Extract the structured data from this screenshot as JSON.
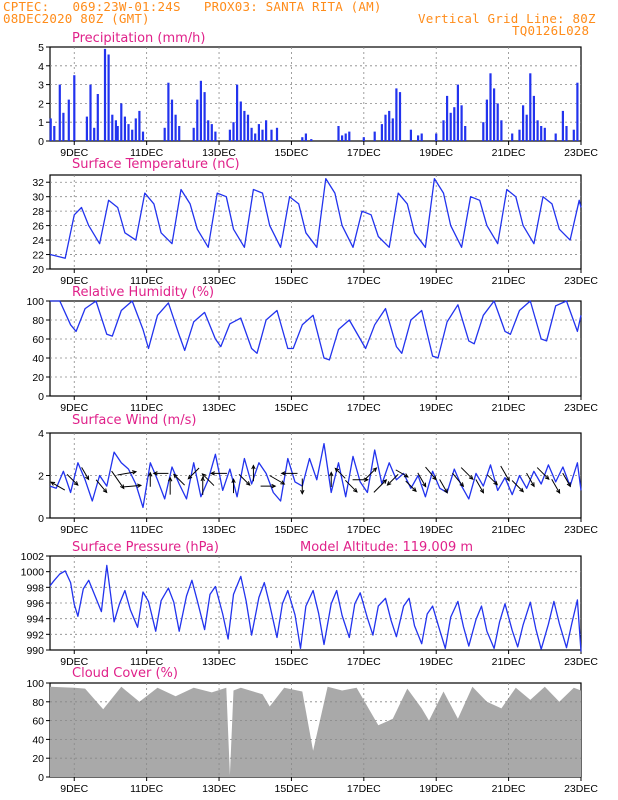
{
  "header": {
    "line1": "CPTEC:   069:23W-01:24S   PROX03: SANTA RITA (AM)",
    "line2_left": "08DEC2020 80Z (GMT)",
    "line2_right": "Vertical Grid Line: 80Z",
    "line3_right": "TQ0126L028"
  },
  "colors": {
    "header": "#ff8c1a",
    "title": "#e0218a",
    "series": "#2233ee",
    "cloud": "#a9a9a9",
    "arrow": "#000000"
  },
  "x_axis": {
    "ticks": [
      "9DEC",
      "11DEC",
      "13DEC",
      "15DEC",
      "17DEC",
      "19DEC",
      "21DEC",
      "23DEC"
    ],
    "range_days": [
      8.33,
      23.0
    ]
  },
  "chart_data": [
    {
      "type": "bar",
      "title": "Precipitation (mm/h)",
      "ylim": [
        0,
        5
      ],
      "yticks": [
        "0",
        "1",
        "2",
        "3",
        "4",
        "5"
      ],
      "series": [
        {
          "x": [
            8.35,
            8.45,
            8.6,
            8.7,
            8.85,
            9.0,
            9.35,
            9.45,
            9.55,
            9.65,
            9.85,
            9.95,
            10.05,
            10.15,
            10.2,
            10.3,
            10.4,
            10.5,
            10.6,
            10.7,
            10.8,
            10.9,
            11.5,
            11.6,
            11.7,
            11.8,
            11.9,
            12.3,
            12.4,
            12.5,
            12.6,
            12.7,
            12.8,
            12.9,
            13.3,
            13.4,
            13.5,
            13.6,
            13.7,
            13.8,
            13.9,
            14.0,
            14.1,
            14.2,
            14.3,
            14.45,
            14.6,
            15.3,
            15.4,
            15.55,
            16.3,
            16.4,
            16.5,
            16.6,
            17.0,
            17.3,
            17.5,
            17.6,
            17.7,
            17.8,
            17.9,
            18.0,
            18.3,
            18.5,
            18.6,
            19.0,
            19.2,
            19.3,
            19.4,
            19.5,
            19.6,
            19.7,
            19.8,
            20.3,
            20.4,
            20.5,
            20.6,
            20.7,
            20.8,
            21.1,
            21.3,
            21.4,
            21.5,
            21.6,
            21.7,
            21.8,
            21.9,
            22.0,
            22.3,
            22.5,
            22.6,
            22.8,
            22.9
          ],
          "values": [
            1.2,
            0.8,
            3.0,
            1.5,
            2.2,
            3.5,
            1.3,
            3.0,
            0.7,
            2.5,
            4.9,
            4.6,
            1.4,
            1.1,
            0.8,
            2.0,
            1.3,
            0.9,
            0.6,
            1.2,
            1.6,
            0.5,
            0.7,
            3.1,
            2.2,
            1.4,
            0.8,
            0.7,
            2.2,
            3.2,
            2.6,
            1.1,
            0.9,
            0.5,
            0.6,
            1.0,
            3.0,
            2.1,
            1.6,
            1.4,
            0.7,
            0.4,
            0.9,
            0.6,
            1.1,
            0.6,
            0.7,
            0.2,
            0.4,
            0.1,
            0.8,
            0.3,
            0.4,
            0.5,
            0.2,
            0.5,
            0.9,
            1.4,
            1.6,
            1.2,
            2.8,
            2.6,
            0.6,
            0.3,
            0.4,
            0.4,
            1.1,
            2.4,
            1.5,
            1.8,
            3.0,
            1.9,
            0.8,
            1.0,
            2.2,
            3.6,
            2.8,
            2.0,
            1.1,
            0.4,
            0.6,
            1.9,
            1.4,
            3.6,
            2.4,
            1.1,
            0.8,
            0.7,
            0.4,
            1.6,
            0.8,
            0.6,
            3.1
          ]
        }
      ]
    },
    {
      "type": "line",
      "title": "Surface Temperature (nC)",
      "ylim": [
        20,
        33
      ],
      "yticks": [
        "20",
        "22",
        "24",
        "26",
        "28",
        "30",
        "32"
      ],
      "series": [
        {
          "x": [
            8.33,
            8.5,
            8.75,
            9.0,
            9.2,
            9.4,
            9.7,
            9.95,
            10.2,
            10.4,
            10.7,
            10.95,
            11.2,
            11.4,
            11.7,
            11.95,
            12.2,
            12.4,
            12.7,
            12.95,
            13.2,
            13.4,
            13.7,
            13.95,
            14.2,
            14.4,
            14.7,
            14.95,
            15.2,
            15.4,
            15.7,
            15.95,
            16.2,
            16.4,
            16.7,
            16.95,
            17.2,
            17.4,
            17.7,
            17.95,
            18.2,
            18.4,
            18.7,
            18.95,
            19.2,
            19.4,
            19.7,
            19.95,
            20.2,
            20.4,
            20.7,
            20.95,
            21.2,
            21.4,
            21.7,
            21.95,
            22.2,
            22.4,
            22.7,
            22.95,
            23.0
          ],
          "values": [
            22.0,
            21.8,
            21.5,
            27.5,
            28.5,
            26.0,
            23.5,
            29.5,
            28.5,
            25.0,
            24.0,
            30.5,
            29.0,
            25.0,
            23.5,
            31.0,
            29.0,
            25.5,
            23.0,
            30.5,
            30.0,
            25.5,
            23.0,
            31.0,
            30.5,
            26.0,
            23.0,
            30.0,
            29.0,
            25.0,
            23.0,
            32.5,
            30.5,
            26.0,
            23.0,
            28.0,
            27.5,
            24.5,
            23.0,
            30.5,
            29.0,
            25.0,
            23.0,
            32.5,
            30.5,
            26.0,
            23.0,
            30.0,
            29.5,
            26.0,
            23.5,
            31.0,
            30.0,
            26.0,
            23.5,
            30.0,
            29.0,
            25.5,
            24.0,
            29.5,
            28.5
          ]
        }
      ]
    },
    {
      "type": "line",
      "title": "Relative Humidity (%)",
      "ylim": [
        0,
        100
      ],
      "yticks": [
        "0",
        "20",
        "40",
        "60",
        "80",
        "100"
      ],
      "series": [
        {
          "x": [
            8.33,
            8.6,
            8.9,
            9.05,
            9.3,
            9.6,
            9.9,
            10.05,
            10.3,
            10.6,
            10.9,
            11.05,
            11.3,
            11.6,
            11.9,
            12.05,
            12.3,
            12.6,
            12.9,
            13.05,
            13.3,
            13.6,
            13.9,
            14.05,
            14.3,
            14.6,
            14.9,
            15.05,
            15.3,
            15.6,
            15.9,
            16.05,
            16.3,
            16.6,
            16.9,
            17.05,
            17.3,
            17.6,
            17.9,
            18.05,
            18.3,
            18.6,
            18.9,
            19.05,
            19.3,
            19.6,
            19.9,
            20.05,
            20.3,
            20.6,
            20.9,
            21.05,
            21.3,
            21.6,
            21.9,
            22.05,
            22.3,
            22.6,
            22.9,
            23.0
          ],
          "values": [
            100,
            100,
            75,
            68,
            92,
            100,
            65,
            63,
            90,
            100,
            70,
            50,
            85,
            98,
            64,
            48,
            78,
            88,
            60,
            52,
            76,
            82,
            50,
            45,
            80,
            90,
            50,
            50,
            75,
            85,
            40,
            38,
            70,
            80,
            60,
            50,
            75,
            92,
            52,
            45,
            80,
            90,
            42,
            40,
            78,
            96,
            58,
            55,
            85,
            100,
            68,
            65,
            90,
            100,
            60,
            58,
            95,
            100,
            68,
            85
          ]
        }
      ]
    },
    {
      "type": "line",
      "title": "Surface Wind (m/s)",
      "ylim": [
        0,
        4
      ],
      "yticks": [
        "0",
        "2",
        "4"
      ],
      "series": [
        {
          "x": [
            8.33,
            8.5,
            8.7,
            8.9,
            9.1,
            9.3,
            9.5,
            9.7,
            9.9,
            10.1,
            10.3,
            10.5,
            10.7,
            10.9,
            11.1,
            11.3,
            11.5,
            11.7,
            11.9,
            12.1,
            12.3,
            12.5,
            12.7,
            12.9,
            13.1,
            13.3,
            13.5,
            13.7,
            13.9,
            14.1,
            14.3,
            14.5,
            14.7,
            14.9,
            15.1,
            15.3,
            15.5,
            15.7,
            15.9,
            16.1,
            16.3,
            16.5,
            16.7,
            16.9,
            17.1,
            17.3,
            17.5,
            17.7,
            17.9,
            18.1,
            18.3,
            18.5,
            18.7,
            18.9,
            19.1,
            19.3,
            19.5,
            19.7,
            19.9,
            20.1,
            20.3,
            20.5,
            20.7,
            20.9,
            21.1,
            21.3,
            21.5,
            21.7,
            21.9,
            22.1,
            22.3,
            22.5,
            22.7,
            22.9,
            23.0
          ],
          "values": [
            1.5,
            1.4,
            2.2,
            1.2,
            2.6,
            1.8,
            0.8,
            2.0,
            1.5,
            3.1,
            2.6,
            2.3,
            1.6,
            0.5,
            2.6,
            1.8,
            0.9,
            2.4,
            1.6,
            0.9,
            2.6,
            1.0,
            1.8,
            3.0,
            1.3,
            2.3,
            1.0,
            2.8,
            1.6,
            2.6,
            2.1,
            1.2,
            0.8,
            2.8,
            1.7,
            1.5,
            2.8,
            1.8,
            3.5,
            1.2,
            2.6,
            1.0,
            2.9,
            1.7,
            1.2,
            3.2,
            1.6,
            2.6,
            1.8,
            2.1,
            1.4,
            2.0,
            1.0,
            2.2,
            1.4,
            1.2,
            2.3,
            1.5,
            0.9,
            2.1,
            1.5,
            2.5,
            1.3,
            1.9,
            1.1,
            2.0,
            1.4,
            2.2,
            1.6,
            2.5,
            1.7,
            2.4,
            1.5,
            2.6,
            1.3
          ]
        }
      ],
      "arrows": {
        "x": [
          8.55,
          8.95,
          9.3,
          9.75,
          10.2,
          10.45,
          10.6,
          11.1,
          11.4,
          11.65,
          11.9,
          12.3,
          12.55,
          12.7,
          13.0,
          13.4,
          13.7,
          13.95,
          14.35,
          14.6,
          14.95,
          15.3,
          16.1,
          16.35,
          16.65,
          16.9,
          17.2,
          17.45,
          17.8,
          18.05,
          18.3,
          18.6,
          18.85,
          19.2,
          19.6,
          19.85,
          20.2,
          20.55,
          20.9,
          21.25,
          21.6,
          21.95,
          22.3,
          22.6
        ],
        "speed": [
          1.3,
          1.2,
          1.0,
          1.4,
          2.2,
          1.8,
          1.6,
          1.0,
          1.1,
          1.5,
          1.2,
          1.2,
          1.6,
          1.4,
          1.3,
          1.0,
          1.2,
          1.3,
          1.1,
          1.5,
          1.3,
          1.2,
          1.1,
          1.0,
          1.4,
          1.2,
          1.2,
          1.6,
          1.2,
          1.0,
          1.1,
          1.3,
          1.4,
          1.2,
          1.5,
          1.4,
          1.2,
          1.0,
          1.5,
          1.3,
          1.2,
          1.4,
          1.3,
          1.2
        ],
        "angle_deg": [
          150,
          -45,
          -60,
          -50,
          -55,
          10,
          5,
          90,
          180,
          90,
          135,
          -135,
          90,
          135,
          180,
          90,
          -45,
          90,
          0,
          -30,
          180,
          -90,
          90,
          135,
          -45,
          0,
          45,
          45,
          -135,
          -30,
          -45,
          -60,
          -50,
          -60,
          -50,
          -45,
          -60,
          -45,
          -60,
          -45,
          -60,
          -45,
          -60,
          -60
        ]
      }
    },
    {
      "type": "line",
      "title": "Surface Pressure (hPa)",
      "annotation": "Model Altitude: 119.009 m",
      "ylim": [
        990,
        1002
      ],
      "yticks": [
        "990",
        "992",
        "994",
        "996",
        "998",
        "1000",
        "1002"
      ],
      "series": [
        {
          "x": [
            8.33,
            8.45,
            8.6,
            8.75,
            8.9,
            9.0,
            9.1,
            9.25,
            9.4,
            9.6,
            9.75,
            9.9,
            10.0,
            10.1,
            10.25,
            10.4,
            10.55,
            10.75,
            10.9,
            11.05,
            11.25,
            11.4,
            11.6,
            11.75,
            11.9,
            12.1,
            12.25,
            12.4,
            12.6,
            12.75,
            12.9,
            13.1,
            13.25,
            13.4,
            13.6,
            13.75,
            13.9,
            14.1,
            14.25,
            14.4,
            14.6,
            14.75,
            14.9,
            15.1,
            15.25,
            15.4,
            15.6,
            15.75,
            15.9,
            16.1,
            16.25,
            16.4,
            16.6,
            16.75,
            16.9,
            17.1,
            17.25,
            17.4,
            17.6,
            17.75,
            17.9,
            18.1,
            18.25,
            18.4,
            18.6,
            18.75,
            18.9,
            19.1,
            19.25,
            19.4,
            19.6,
            19.75,
            19.9,
            20.1,
            20.25,
            20.4,
            20.6,
            20.75,
            20.9,
            21.1,
            21.25,
            21.4,
            21.6,
            21.75,
            21.9,
            22.1,
            22.25,
            22.4,
            22.6,
            22.75,
            22.9,
            23.0
          ],
          "values": [
            998.2,
            998.9,
            999.7,
            1000.1,
            998.6,
            995.8,
            994.3,
            997.8,
            998.9,
            996.6,
            994.9,
            1000.8,
            997.3,
            993.6,
            995.9,
            997.6,
            995.1,
            992.9,
            997.4,
            996.2,
            992.4,
            996.3,
            997.9,
            996.1,
            992.4,
            996.9,
            998.9,
            996.3,
            992.6,
            997.1,
            998.1,
            994.6,
            991.4,
            997.1,
            999.4,
            996.2,
            991.9,
            996.7,
            998.6,
            995.8,
            991.6,
            995.9,
            997.6,
            994.5,
            990.2,
            995.6,
            997.6,
            994.7,
            990.7,
            995.9,
            997.6,
            994.4,
            991.6,
            995.9,
            997.3,
            994.1,
            991.9,
            995.6,
            996.6,
            993.8,
            991.7,
            995.6,
            996.6,
            993.1,
            990.8,
            994.6,
            995.6,
            992.5,
            990.2,
            994.2,
            996.2,
            993.0,
            990.5,
            993.9,
            995.6,
            992.4,
            990.2,
            993.6,
            995.9,
            992.5,
            990.4,
            993.2,
            996.1,
            992.7,
            990.1,
            993.3,
            996.2,
            993.4,
            990.3,
            993.5,
            996.4,
            989.8
          ]
        }
      ]
    },
    {
      "type": "area",
      "title": "Cloud Cover (%)",
      "ylim": [
        0,
        100
      ],
      "yticks": [
        "0",
        "20",
        "40",
        "60",
        "80",
        "100"
      ],
      "series": [
        {
          "x": [
            8.33,
            9.0,
            9.3,
            9.8,
            10.3,
            10.8,
            11.3,
            11.8,
            12.3,
            12.8,
            13.2,
            13.3,
            13.4,
            13.6,
            14.2,
            14.4,
            14.8,
            15.3,
            15.6,
            16.0,
            16.4,
            16.8,
            17.4,
            17.8,
            18.2,
            18.6,
            18.8,
            19.2,
            19.6,
            20.0,
            20.4,
            20.8,
            21.2,
            21.6,
            22.0,
            22.4,
            22.8,
            23.0
          ],
          "values": [
            96,
            95,
            94,
            72,
            96,
            80,
            95,
            86,
            95,
            90,
            95,
            2,
            92,
            95,
            88,
            75,
            95,
            91,
            28,
            96,
            92,
            95,
            55,
            62,
            94,
            73,
            60,
            91,
            62,
            96,
            80,
            73,
            95,
            82,
            96,
            80,
            95,
            92
          ]
        }
      ]
    }
  ]
}
